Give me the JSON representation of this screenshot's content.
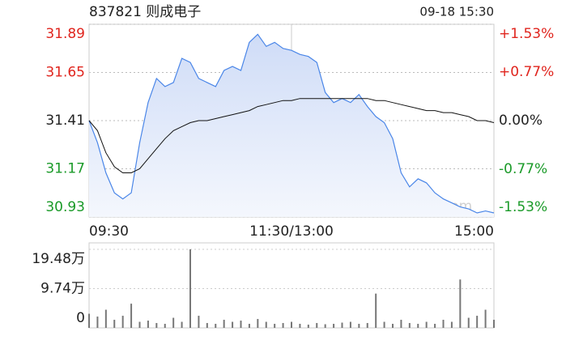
{
  "chart_data": [
    {
      "type": "line",
      "title": "837821 则成电子",
      "subtitle": "09-18 15:30",
      "annotation": "sina.com",
      "x": [
        0,
        5,
        10,
        15,
        20,
        25,
        30,
        35,
        40,
        45,
        50,
        55,
        60,
        65,
        70,
        75,
        80,
        85,
        90,
        95,
        100,
        105,
        110,
        115,
        120,
        125,
        130,
        135,
        140,
        145,
        150,
        155,
        160,
        165,
        170,
        175,
        180,
        185,
        190,
        195,
        200,
        205,
        210,
        215,
        220,
        225,
        230,
        235,
        240
      ],
      "xlim": [
        0,
        240
      ],
      "xticks": [
        {
          "value": 0,
          "label": "09:30"
        },
        {
          "value": 120,
          "label": "11:30/13:00"
        },
        {
          "value": 240,
          "label": "15:00"
        }
      ],
      "ylim": [
        30.93,
        31.89
      ],
      "yticks": [
        31.89,
        31.65,
        31.41,
        31.17,
        30.93
      ],
      "y2lim": [
        -1.53,
        1.53
      ],
      "y2ticks": [
        {
          "value": 1.53,
          "label": "+1.53%"
        },
        {
          "value": 0.77,
          "label": "+0.77%"
        },
        {
          "value": 0,
          "label": "0.00%"
        },
        {
          "value": -0.77,
          "label": "-0.77%"
        },
        {
          "value": -1.53,
          "label": "-1.53%"
        }
      ],
      "up_color": "#e0251e",
      "down_color": "#1a9a28",
      "flat_color": "#222222",
      "series": [
        {
          "color": "#4a86e8",
          "values": [
            31.41,
            31.3,
            31.15,
            31.05,
            31.02,
            31.05,
            31.3,
            31.5,
            31.62,
            31.58,
            31.6,
            31.72,
            31.7,
            31.62,
            31.6,
            31.58,
            31.66,
            31.68,
            31.66,
            31.8,
            31.84,
            31.78,
            31.8,
            31.77,
            31.76,
            31.74,
            31.73,
            31.7,
            31.55,
            31.5,
            31.52,
            31.5,
            31.54,
            31.48,
            31.43,
            31.4,
            31.32,
            31.15,
            31.08,
            31.12,
            31.1,
            31.05,
            31.02,
            31.0,
            30.98,
            30.97,
            30.95,
            30.96,
            30.95
          ]
        },
        {
          "color": "#111111",
          "values": [
            31.41,
            31.36,
            31.25,
            31.18,
            31.15,
            31.15,
            31.17,
            31.22,
            31.27,
            31.32,
            31.36,
            31.38,
            31.4,
            31.41,
            31.41,
            31.42,
            31.43,
            31.44,
            31.45,
            31.46,
            31.48,
            31.49,
            31.5,
            31.51,
            31.51,
            31.52,
            31.52,
            31.52,
            31.52,
            31.52,
            31.52,
            31.52,
            31.52,
            31.52,
            31.51,
            31.51,
            31.5,
            31.49,
            31.48,
            31.47,
            31.46,
            31.46,
            31.45,
            31.45,
            31.44,
            31.43,
            31.41,
            31.41,
            31.4
          ]
        }
      ]
    },
    {
      "type": "bar",
      "x": [
        0,
        5,
        10,
        15,
        20,
        25,
        30,
        35,
        40,
        45,
        50,
        55,
        60,
        65,
        70,
        75,
        80,
        85,
        90,
        95,
        100,
        105,
        110,
        115,
        120,
        125,
        130,
        135,
        140,
        145,
        150,
        155,
        160,
        165,
        170,
        175,
        180,
        185,
        190,
        195,
        200,
        205,
        210,
        215,
        220,
        225,
        230,
        235,
        240
      ],
      "xlim": [
        0,
        240
      ],
      "ylim": [
        0,
        19.48
      ],
      "yticks": [
        {
          "value": 19.48,
          "label": "19.48万"
        },
        {
          "value": 9.74,
          "label": "9.74万"
        },
        0
      ],
      "color": "#777777",
      "values": [
        3.5,
        2.8,
        4.5,
        2.0,
        3.0,
        6.0,
        1.5,
        1.8,
        1.2,
        1.0,
        2.5,
        1.5,
        19.48,
        3.0,
        1.2,
        1.0,
        2.0,
        1.5,
        1.8,
        1.0,
        2.2,
        1.5,
        1.0,
        1.2,
        1.5,
        1.0,
        0.8,
        1.2,
        0.9,
        1.0,
        1.3,
        1.5,
        1.0,
        1.2,
        8.5,
        1.5,
        1.0,
        2.0,
        1.2,
        1.0,
        1.5,
        1.0,
        2.0,
        1.5,
        12.0,
        2.5,
        3.0,
        4.5,
        2.0
      ]
    }
  ]
}
